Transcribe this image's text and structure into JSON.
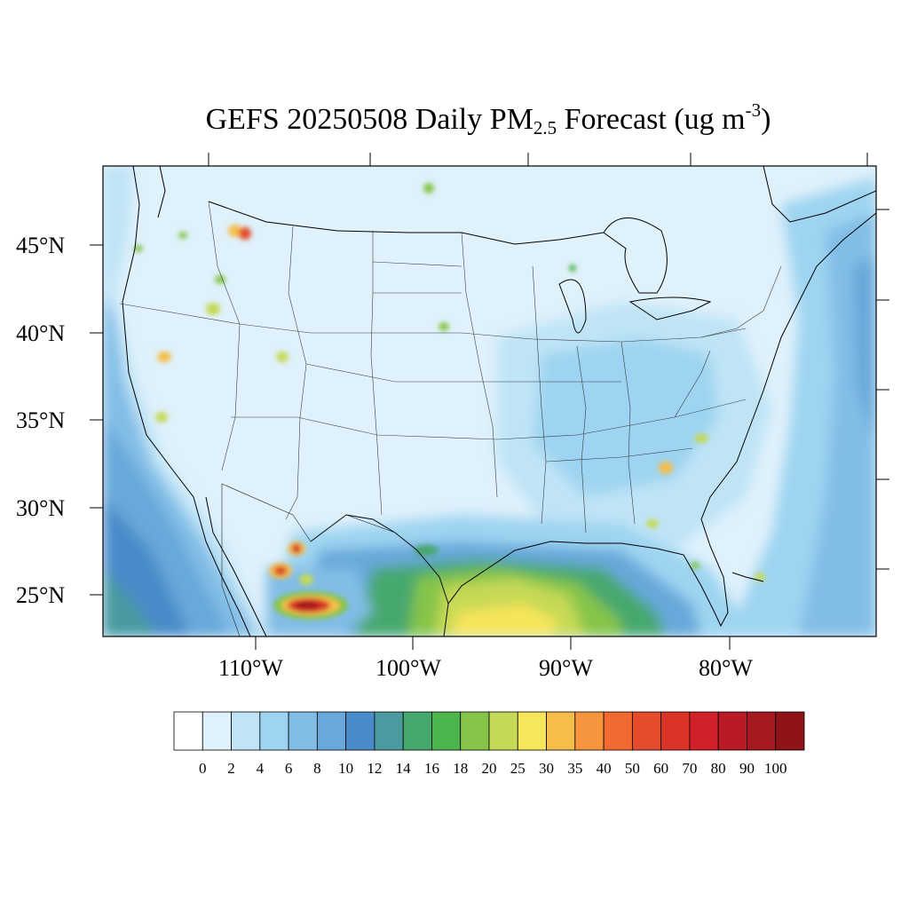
{
  "title": {
    "main": "GEFS 20250508 Daily PM",
    "subscript": "2.5",
    "rest": " Forecast (ug m",
    "superscript": "-3",
    "close": ")"
  },
  "lat_labels": [
    "45°N",
    "40°N",
    "35°N",
    "30°N",
    "25°N"
  ],
  "lon_labels": [
    "110°W",
    "100°W",
    "90°W",
    "80°W"
  ],
  "colorbar": {
    "colors": [
      "#ffffff",
      "#dff1fb",
      "#bfe4f6",
      "#9ed4f1",
      "#82bde6",
      "#68a8da",
      "#4a8bc9",
      "#4a9aa0",
      "#47a86e",
      "#4cb54c",
      "#86c54a",
      "#c6d957",
      "#f7e55a",
      "#f7bd4a",
      "#f7953e",
      "#f26a30",
      "#e44c2b",
      "#d93426",
      "#d1202a",
      "#ba1a24",
      "#a8191e",
      "#8e1418"
    ],
    "labels": [
      "0",
      "2",
      "4",
      "6",
      "8",
      "10",
      "12",
      "14",
      "16",
      "18",
      "20",
      "25",
      "30",
      "35",
      "40",
      "50",
      "60",
      "70",
      "80",
      "90",
      "100"
    ]
  }
}
